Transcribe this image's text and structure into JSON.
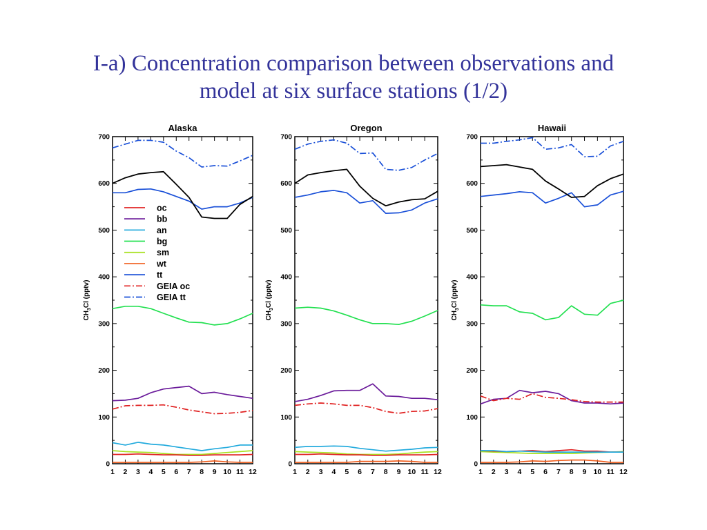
{
  "slide": {
    "title_line1": "I-a) Concentration comparison between observations and",
    "title_line2": "model at six surface stations (1/2)"
  },
  "series_styles": {
    "oc": {
      "color": "#e02020",
      "dash": "solid"
    },
    "bb": {
      "color": "#6a1a9a",
      "dash": "solid"
    },
    "an": {
      "color": "#22aadd",
      "dash": "solid"
    },
    "bg": {
      "color": "#22e050",
      "dash": "solid"
    },
    "sm": {
      "color": "#a8e020",
      "dash": "solid"
    },
    "wt": {
      "color": "#f06020",
      "dash": "solid"
    },
    "tt": {
      "color": "#1a50d8",
      "dash": "solid"
    },
    "GEIA oc": {
      "color": "#e02020",
      "dash": "dashdot"
    },
    "GEIA tt": {
      "color": "#1a50d8",
      "dash": "dashdot"
    },
    "obs": {
      "color": "#000000",
      "dash": "solid"
    }
  },
  "chart_data": [
    {
      "type": "line",
      "title": "Alaska",
      "ylabel": "CH3Cl (pptv)",
      "x": [
        1,
        2,
        3,
        4,
        5,
        6,
        7,
        8,
        9,
        10,
        11,
        12
      ],
      "ylim": [
        0,
        700
      ],
      "yticks": [
        0,
        100,
        200,
        300,
        400,
        500,
        600,
        700
      ],
      "legend": {
        "placement": "center-left",
        "entries": [
          "oc",
          "bb",
          "an",
          "bg",
          "sm",
          "wt",
          "tt",
          "GEIA oc",
          "GEIA tt"
        ]
      },
      "series": [
        {
          "key": "obs",
          "values": [
            600,
            612,
            620,
            623,
            625,
            598,
            570,
            528,
            525,
            525,
            555,
            572
          ]
        },
        {
          "name": "oc",
          "values": [
            20,
            20,
            21,
            20,
            19,
            19,
            18,
            18,
            19,
            19,
            19,
            20
          ]
        },
        {
          "name": "bb",
          "values": [
            135,
            136,
            140,
            152,
            160,
            163,
            166,
            150,
            153,
            148,
            144,
            140
          ]
        },
        {
          "name": "an",
          "values": [
            45,
            40,
            46,
            42,
            40,
            36,
            32,
            28,
            32,
            35,
            40,
            40
          ]
        },
        {
          "name": "bg",
          "values": [
            332,
            337,
            337,
            332,
            322,
            312,
            303,
            302,
            297,
            300,
            310,
            322
          ]
        },
        {
          "name": "sm",
          "values": [
            28,
            26,
            25,
            24,
            22,
            20,
            20,
            20,
            22,
            24,
            26,
            28
          ]
        },
        {
          "name": "wt",
          "values": [
            3,
            3,
            3,
            3,
            3,
            3,
            3,
            4,
            6,
            4,
            3,
            3
          ]
        },
        {
          "name": "tt",
          "values": [
            580,
            580,
            587,
            588,
            582,
            572,
            562,
            545,
            550,
            550,
            558,
            570
          ]
        },
        {
          "name": "GEIA oc",
          "values": [
            117,
            124,
            125,
            125,
            126,
            121,
            115,
            111,
            107,
            108,
            110,
            114
          ]
        },
        {
          "name": "GEIA tt",
          "values": [
            676,
            684,
            692,
            692,
            688,
            669,
            655,
            635,
            638,
            637,
            648,
            660
          ]
        }
      ]
    },
    {
      "type": "line",
      "title": "Oregon",
      "ylabel": "CH3Cl (pptv)",
      "x": [
        1,
        2,
        3,
        4,
        5,
        6,
        7,
        8,
        9,
        10,
        11,
        12
      ],
      "ylim": [
        0,
        700
      ],
      "yticks": [
        0,
        100,
        200,
        300,
        400,
        500,
        600,
        700
      ],
      "series": [
        {
          "key": "obs",
          "values": [
            600,
            618,
            623,
            627,
            630,
            594,
            568,
            552,
            560,
            565,
            567,
            583
          ]
        },
        {
          "name": "oc",
          "values": [
            20,
            20,
            21,
            20,
            19,
            19,
            18,
            18,
            19,
            19,
            19,
            20
          ]
        },
        {
          "name": "bb",
          "values": [
            133,
            138,
            146,
            156,
            157,
            157,
            171,
            145,
            144,
            140,
            140,
            137
          ]
        },
        {
          "name": "an",
          "values": [
            35,
            37,
            37,
            38,
            37,
            33,
            30,
            27,
            29,
            31,
            34,
            35
          ]
        },
        {
          "name": "bg",
          "values": [
            333,
            335,
            333,
            327,
            318,
            308,
            300,
            300,
            298,
            305,
            316,
            328
          ]
        },
        {
          "name": "sm",
          "values": [
            26,
            25,
            24,
            23,
            21,
            20,
            20,
            20,
            21,
            23,
            25,
            26
          ]
        },
        {
          "name": "wt",
          "values": [
            3,
            3,
            3,
            3,
            3,
            5,
            5,
            5,
            6,
            5,
            3,
            3
          ]
        },
        {
          "name": "tt",
          "values": [
            570,
            575,
            582,
            585,
            580,
            558,
            563,
            536,
            537,
            543,
            558,
            567
          ]
        },
        {
          "name": "GEIA oc",
          "values": [
            125,
            128,
            130,
            128,
            125,
            125,
            120,
            112,
            108,
            112,
            113,
            118
          ]
        },
        {
          "name": "GEIA tt",
          "values": [
            673,
            684,
            690,
            693,
            686,
            664,
            665,
            630,
            628,
            634,
            650,
            664
          ]
        }
      ]
    },
    {
      "type": "line",
      "title": "Hawaii",
      "ylabel": "CH3Cl (pptv)",
      "x": [
        1,
        2,
        3,
        4,
        5,
        6,
        7,
        8,
        9,
        10,
        11,
        12
      ],
      "ylim": [
        0,
        700
      ],
      "yticks": [
        0,
        100,
        200,
        300,
        400,
        500,
        600,
        700
      ],
      "series": [
        {
          "key": "obs",
          "values": [
            636,
            638,
            640,
            635,
            630,
            605,
            588,
            570,
            572,
            595,
            610,
            620
          ]
        },
        {
          "name": "oc",
          "values": [
            28,
            27,
            26,
            27,
            28,
            26,
            28,
            30,
            27,
            27,
            25,
            25
          ]
        },
        {
          "name": "bb",
          "values": [
            128,
            138,
            140,
            157,
            152,
            155,
            150,
            135,
            130,
            130,
            128,
            130
          ]
        },
        {
          "name": "an",
          "values": [
            28,
            28,
            26,
            27,
            26,
            25,
            25,
            25,
            25,
            25,
            25,
            25
          ]
        },
        {
          "name": "bg",
          "values": [
            340,
            338,
            338,
            325,
            322,
            308,
            313,
            338,
            320,
            318,
            343,
            350
          ]
        },
        {
          "name": "sm",
          "values": [
            26,
            25,
            24,
            23,
            22,
            22,
            22,
            22,
            23,
            24,
            25,
            26
          ]
        },
        {
          "name": "wt",
          "values": [
            3,
            3,
            3,
            4,
            6,
            5,
            7,
            8,
            8,
            6,
            3,
            3
          ]
        },
        {
          "name": "tt",
          "values": [
            572,
            575,
            578,
            582,
            580,
            558,
            568,
            580,
            550,
            554,
            575,
            583
          ]
        },
        {
          "name": "GEIA oc",
          "values": [
            145,
            135,
            140,
            138,
            150,
            142,
            140,
            137,
            133,
            132,
            132,
            132
          ]
        },
        {
          "name": "GEIA tt",
          "values": [
            686,
            686,
            690,
            693,
            698,
            673,
            676,
            683,
            657,
            658,
            680,
            690
          ]
        }
      ]
    }
  ]
}
